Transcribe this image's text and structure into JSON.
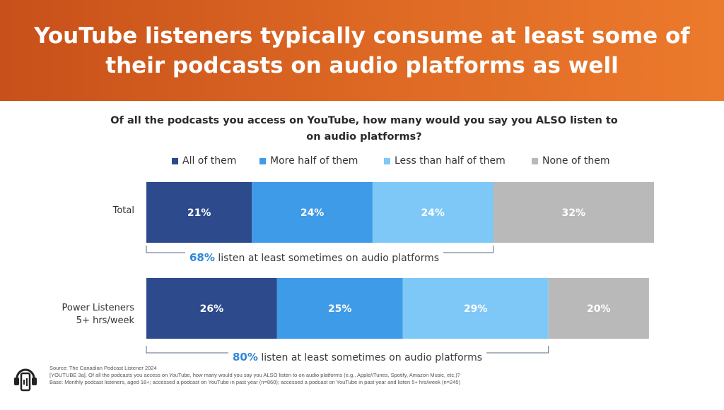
{
  "header": {
    "title": "YouTube listeners typically consume at least some of their podcasts on audio platforms as well"
  },
  "question": "Of all the podcasts you access on YouTube, how many would you say you ALSO listen to on audio platforms?",
  "colors": {
    "header_start": "#c8501a",
    "header_end": "#ec7a2c",
    "accent_pct": "#2f86d8"
  },
  "chart_data": {
    "type": "bar",
    "orientation": "horizontal",
    "stacked": true,
    "title": "",
    "categories": [
      "Total",
      "Power Listeners 5+ hrs/week"
    ],
    "series": [
      {
        "name": "All of them",
        "color": "#2c4a8c",
        "values": [
          21,
          26
        ],
        "labels": [
          "21%",
          "26%"
        ]
      },
      {
        "name": "More half of them",
        "color": "#3e9be8",
        "values": [
          24,
          25
        ],
        "labels": [
          "24%",
          "25%"
        ]
      },
      {
        "name": "Less than half of them",
        "color": "#7ec8f7",
        "values": [
          24,
          29
        ],
        "labels": [
          "24%",
          "29%"
        ]
      },
      {
        "name": "None of them",
        "color": "#b9b9b9",
        "values": [
          32,
          20
        ],
        "labels": [
          "32%",
          "20%"
        ]
      }
    ],
    "legend_position": "top",
    "xlim": [
      0,
      101
    ],
    "grid": false
  },
  "rows": [
    {
      "label_line1": "Total",
      "label_line2": ""
    },
    {
      "label_line1": "Power Listeners",
      "label_line2": "5+ hrs/week"
    }
  ],
  "summaries": [
    {
      "pct": "68%",
      "text": "listen at least sometimes on audio platforms"
    },
    {
      "pct": "80%",
      "text": "listen at least sometimes on audio platforms"
    }
  ],
  "footer": {
    "source": "Source: The Canadian Podcast Listener 2024",
    "question_ref": "[YOUTUBE 3a]. Of all the podcasts you access on YouTube, how many would you say you ALSO listen to on audio platforms (e.g., Apple/iTunes, Spotify, Amazon Music, etc.)?",
    "base": "Base: Monthly podcast listeners, aged 18+; accessed a podcast on YouTube in past year (n=860); accessed a podcast on YouTube in past year and listen 5+ hrs/week (n=245)"
  },
  "logo": {
    "icon": "podcast-phone-icon"
  }
}
